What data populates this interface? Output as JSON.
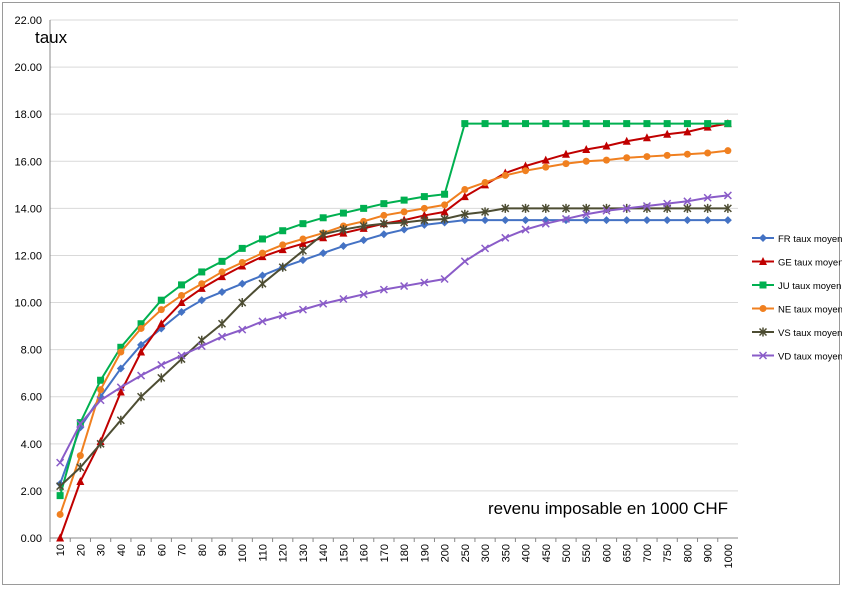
{
  "chart_data": {
    "type": "line",
    "ylabel": "taux",
    "xlabel": "revenu imposable en 1000 CHF",
    "ylim": [
      0,
      22
    ],
    "yticks": [
      "0.00",
      "2.00",
      "4.00",
      "6.00",
      "8.00",
      "10.00",
      "12.00",
      "14.00",
      "16.00",
      "18.00",
      "20.00",
      "22.00"
    ],
    "grid": "horizontal",
    "legend_position": "right",
    "categories": [
      "10",
      "20",
      "30",
      "40",
      "50",
      "60",
      "70",
      "80",
      "90",
      "100",
      "110",
      "120",
      "130",
      "140",
      "150",
      "160",
      "170",
      "180",
      "190",
      "200",
      "250",
      "300",
      "350",
      "400",
      "450",
      "500",
      "550",
      "600",
      "650",
      "700",
      "750",
      "800",
      "900",
      "1000"
    ],
    "series": [
      {
        "name": "FR taux moyen",
        "color": "#4472c4",
        "marker": "diamond",
        "values": [
          2.3,
          4.7,
          6.0,
          7.2,
          8.2,
          8.9,
          9.6,
          10.1,
          10.45,
          10.8,
          11.15,
          11.5,
          11.8,
          12.1,
          12.4,
          12.65,
          12.9,
          13.1,
          13.3,
          13.4,
          13.5,
          13.5,
          13.5,
          13.5,
          13.5,
          13.5,
          13.5,
          13.5,
          13.5,
          13.5,
          13.5,
          13.5,
          13.5,
          13.5
        ]
      },
      {
        "name": "GE taux moyen",
        "color": "#c00000",
        "marker": "triangle",
        "values": [
          0.0,
          2.4,
          4.1,
          6.2,
          7.9,
          9.1,
          10.0,
          10.6,
          11.1,
          11.55,
          11.95,
          12.25,
          12.5,
          12.75,
          12.95,
          13.15,
          13.35,
          13.5,
          13.7,
          13.85,
          14.5,
          15.0,
          15.5,
          15.8,
          16.05,
          16.3,
          16.5,
          16.65,
          16.85,
          17.0,
          17.15,
          17.25,
          17.45,
          17.6
        ]
      },
      {
        "name": "JU taux moyen",
        "color": "#00b050",
        "marker": "square",
        "values": [
          1.8,
          4.9,
          6.7,
          8.1,
          9.1,
          10.1,
          10.75,
          11.3,
          11.75,
          12.3,
          12.7,
          13.05,
          13.35,
          13.6,
          13.8,
          14.0,
          14.2,
          14.35,
          14.5,
          14.6,
          17.6,
          17.6,
          17.6,
          17.6,
          17.6,
          17.6,
          17.6,
          17.6,
          17.6,
          17.6,
          17.6,
          17.6,
          17.6,
          17.6
        ]
      },
      {
        "name": "NE taux moyen",
        "color": "#f08020",
        "marker": "circle",
        "values": [
          1.0,
          3.5,
          6.3,
          7.9,
          8.9,
          9.7,
          10.3,
          10.8,
          11.3,
          11.7,
          12.1,
          12.45,
          12.7,
          12.95,
          13.25,
          13.45,
          13.7,
          13.85,
          14.0,
          14.15,
          14.8,
          15.1,
          15.4,
          15.6,
          15.75,
          15.9,
          16.0,
          16.05,
          16.15,
          16.2,
          16.25,
          16.3,
          16.35,
          16.45
        ]
      },
      {
        "name": "VS taux moyen",
        "color": "#4d4d33",
        "marker": "star",
        "values": [
          2.2,
          3.0,
          4.0,
          5.0,
          6.0,
          6.8,
          7.6,
          8.4,
          9.1,
          10.0,
          10.8,
          11.5,
          12.2,
          12.9,
          13.1,
          13.25,
          13.35,
          13.4,
          13.5,
          13.55,
          13.75,
          13.85,
          14.0,
          14.0,
          14.0,
          14.0,
          14.0,
          14.0,
          14.0,
          14.0,
          14.0,
          14.0,
          14.0,
          14.0
        ]
      },
      {
        "name": "VD taux moyen",
        "color": "#8a5cc8",
        "marker": "x",
        "values": [
          3.2,
          4.85,
          5.85,
          6.4,
          6.9,
          7.35,
          7.75,
          8.15,
          8.55,
          8.85,
          9.2,
          9.45,
          9.7,
          9.95,
          10.15,
          10.35,
          10.55,
          10.7,
          10.85,
          11.0,
          11.75,
          12.3,
          12.75,
          13.1,
          13.35,
          13.55,
          13.75,
          13.9,
          14.0,
          14.1,
          14.2,
          14.3,
          14.45,
          14.55
        ]
      }
    ]
  }
}
